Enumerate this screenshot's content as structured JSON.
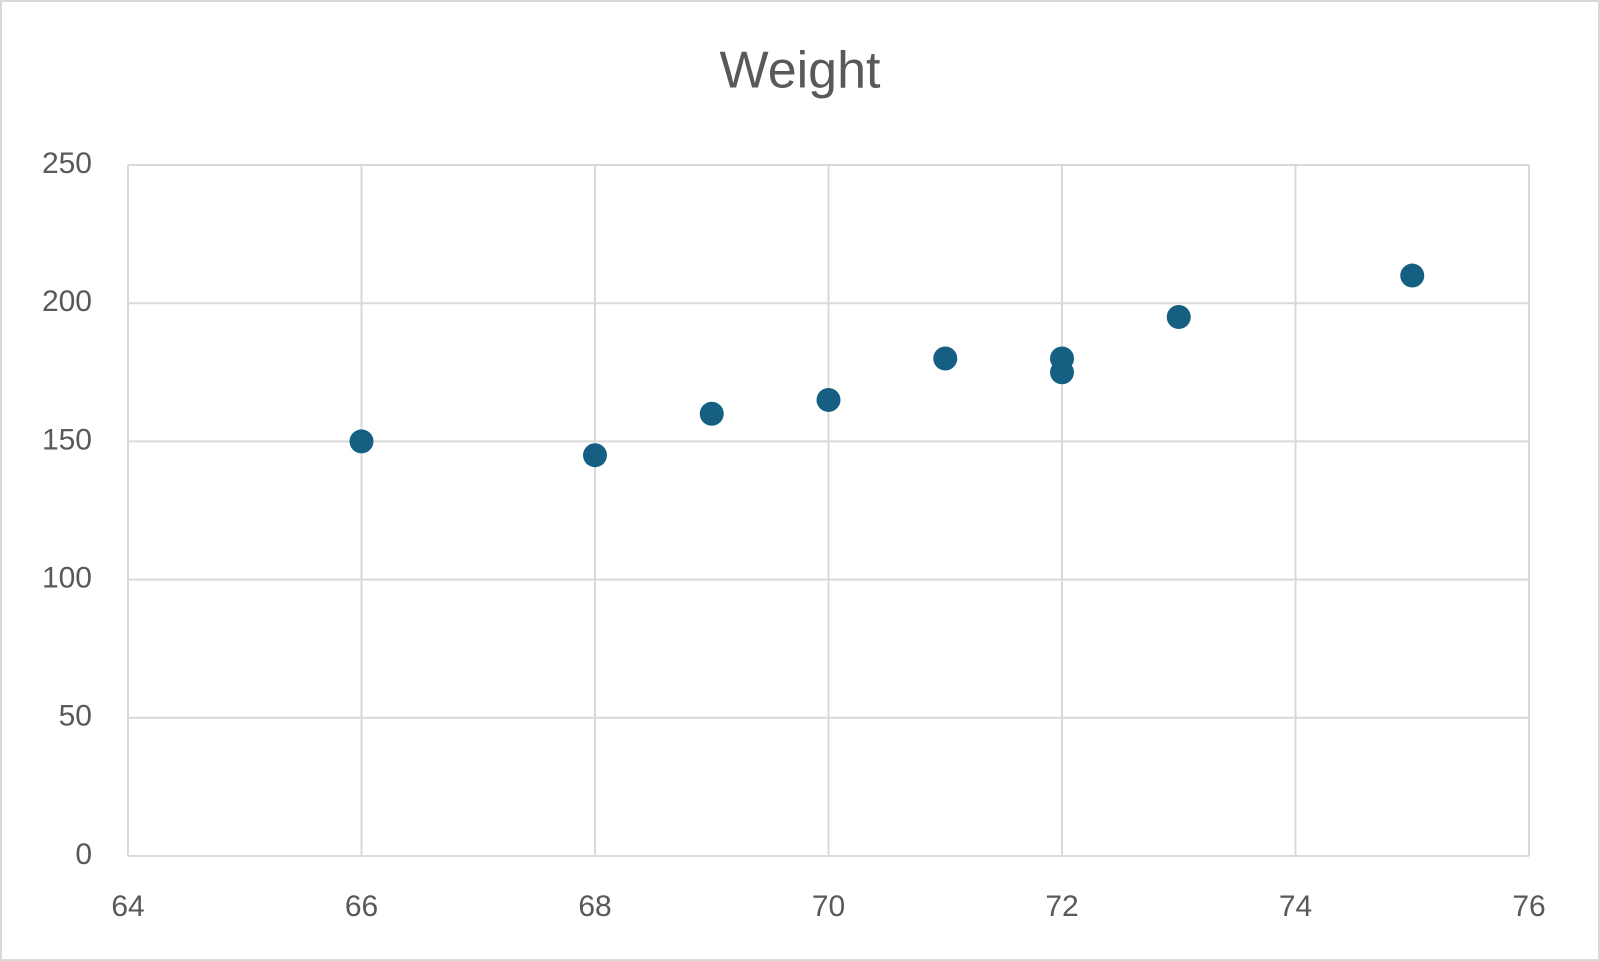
{
  "chart_data": {
    "type": "scatter",
    "title": "Weight",
    "x": [
      66,
      68,
      69,
      70,
      71,
      72,
      72,
      73,
      75
    ],
    "values": [
      150,
      145,
      160,
      165,
      180,
      180,
      175,
      195,
      210
    ],
    "color": "#156082",
    "xlim": [
      64,
      76
    ],
    "xticks": [
      64,
      66,
      68,
      70,
      72,
      74,
      76
    ],
    "ylim": [
      0,
      250
    ],
    "yticks": [
      0,
      50,
      100,
      150,
      200,
      250
    ],
    "grid": true
  }
}
